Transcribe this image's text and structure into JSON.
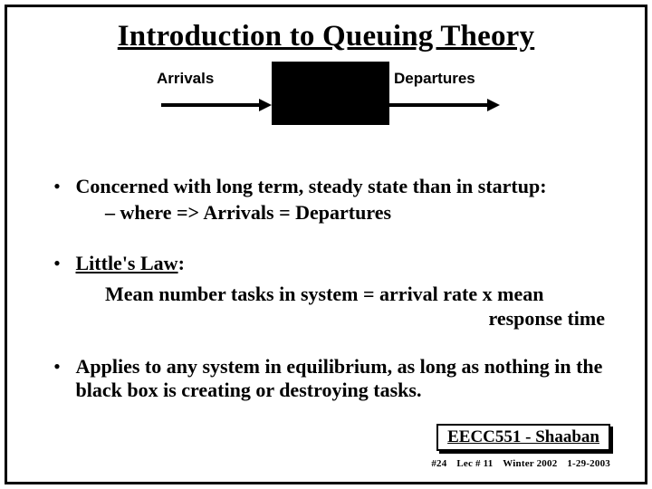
{
  "title": "Introduction to Queuing Theory",
  "diagram": {
    "arrivals_label": "Arrivals",
    "departures_label": "Departures",
    "box_color": "#000000",
    "arrow_color": "#000000"
  },
  "bullets": {
    "b1_line1": "Concerned with long term, steady state than in startup:",
    "b1_sub": "– where   =>       Arrivals   =   Departures",
    "b2_head": "Little's Law",
    "b2_colon": ":",
    "b2_desc_line1": "Mean number tasks in system  =  arrival rate  x  mean",
    "b2_desc_line2": "response time",
    "b3": "Applies to any system in equilibrium, as long as nothing in the black box is creating or destroying tasks."
  },
  "footer": {
    "course": "EECC551 - Shaaban",
    "slide_no": "#24",
    "lec": "Lec # 11",
    "term": "Winter 2002",
    "date": "1-29-2003"
  }
}
